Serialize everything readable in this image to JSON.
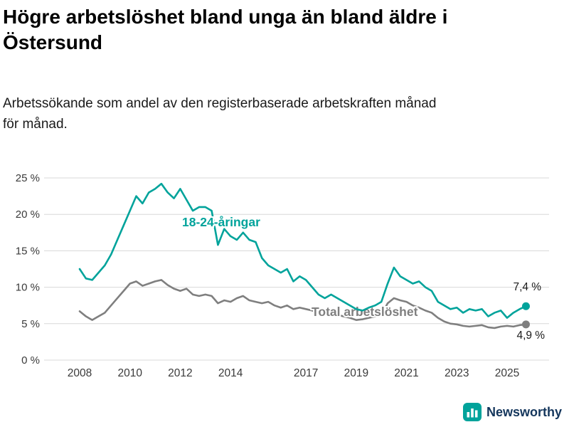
{
  "title_lines": [
    "Högre arbetslöshet bland unga än bland äldre i",
    "Östersund"
  ],
  "subtitle_lines": [
    "Arbetssökande som andel av den registerbaserade arbetskraften månad",
    "för månad."
  ],
  "footer": {
    "brand": "Newsworthy",
    "brand_color": "#14365c",
    "icon_color": "#00a39b",
    "icon_name": "bar-chart-logo-icon"
  },
  "chart_data": {
    "type": "line",
    "title": "Högre arbetslöshet bland unga än bland äldre i Östersund",
    "subtitle": "Arbetssökande som andel av den registerbaserade arbetskraften månad för månad.",
    "xlabel": "",
    "ylabel": "",
    "ylim": [
      0,
      25
    ],
    "xlim": [
      2007.4,
      2026.6
    ],
    "grid": "horizontal",
    "legend_position": "inline-labels",
    "grid_color": "#d8d8d8",
    "axis_text_color": "#3a3a3a",
    "annotation_color": "#1a1a1a",
    "yticks": [
      {
        "value": 0,
        "label": "0 %"
      },
      {
        "value": 5,
        "label": "5 %"
      },
      {
        "value": 10,
        "label": "10 %"
      },
      {
        "value": 15,
        "label": "15 %"
      },
      {
        "value": 20,
        "label": "20 %"
      },
      {
        "value": 25,
        "label": "25 %"
      }
    ],
    "xticks": [
      {
        "value": 2008,
        "label": "2008"
      },
      {
        "value": 2010,
        "label": "2010"
      },
      {
        "value": 2012,
        "label": "2012"
      },
      {
        "value": 2014,
        "label": "2014"
      },
      {
        "value": 2017,
        "label": "2017"
      },
      {
        "value": 2019,
        "label": "2019"
      },
      {
        "value": 2021,
        "label": "2021"
      },
      {
        "value": 2023,
        "label": "2023"
      },
      {
        "value": 2025,
        "label": "2025"
      }
    ],
    "x": [
      2008.0,
      2008.25,
      2008.5,
      2008.75,
      2009.0,
      2009.25,
      2009.5,
      2009.75,
      2010.0,
      2010.25,
      2010.5,
      2010.75,
      2011.0,
      2011.25,
      2011.5,
      2011.75,
      2012.0,
      2012.25,
      2012.5,
      2012.75,
      2013.0,
      2013.25,
      2013.5,
      2013.75,
      2014.0,
      2014.25,
      2014.5,
      2014.75,
      2015.0,
      2015.25,
      2015.5,
      2015.75,
      2016.0,
      2016.25,
      2016.5,
      2016.75,
      2017.0,
      2017.25,
      2017.5,
      2017.75,
      2018.0,
      2018.25,
      2018.5,
      2018.75,
      2019.0,
      2019.25,
      2019.5,
      2019.75,
      2020.0,
      2020.25,
      2020.5,
      2020.75,
      2021.0,
      2021.25,
      2021.5,
      2021.75,
      2022.0,
      2022.25,
      2022.5,
      2022.75,
      2023.0,
      2023.25,
      2023.5,
      2023.75,
      2024.0,
      2024.25,
      2024.5,
      2024.75,
      2025.0,
      2025.25,
      2025.5,
      2025.75
    ],
    "series": [
      {
        "name": "Total arbetslöshet",
        "color": "#7f7f7f",
        "end_label": "4,9 %",
        "values": [
          6.7,
          6.0,
          5.5,
          6.0,
          6.5,
          7.5,
          8.5,
          9.5,
          10.5,
          10.8,
          10.2,
          10.5,
          10.8,
          11.0,
          10.3,
          9.8,
          9.5,
          9.8,
          9.0,
          8.8,
          9.0,
          8.8,
          7.8,
          8.2,
          8.0,
          8.5,
          8.8,
          8.2,
          8.0,
          7.8,
          8.0,
          7.5,
          7.2,
          7.5,
          7.0,
          7.2,
          7.0,
          6.8,
          6.5,
          6.3,
          6.5,
          6.2,
          6.0,
          5.8,
          5.5,
          5.6,
          5.8,
          6.0,
          6.2,
          7.8,
          8.5,
          8.2,
          8.0,
          7.5,
          7.2,
          6.8,
          6.5,
          5.8,
          5.3,
          5.0,
          4.9,
          4.7,
          4.6,
          4.7,
          4.8,
          4.5,
          4.4,
          4.6,
          4.7,
          4.6,
          4.8,
          4.9
        ]
      },
      {
        "name": "18-24-åringar",
        "color": "#00a39b",
        "end_label": "7,4 %",
        "values": [
          12.5,
          11.2,
          11.0,
          12.0,
          13.0,
          14.5,
          16.5,
          18.5,
          20.5,
          22.5,
          21.5,
          23.0,
          23.5,
          24.2,
          23.0,
          22.2,
          23.5,
          22.0,
          20.5,
          21.0,
          21.0,
          20.5,
          15.8,
          18.0,
          17.0,
          16.5,
          17.5,
          16.5,
          16.2,
          14.0,
          13.0,
          12.5,
          12.0,
          12.5,
          10.8,
          11.5,
          11.0,
          10.0,
          9.0,
          8.5,
          9.0,
          8.5,
          8.0,
          7.5,
          7.0,
          6.8,
          7.2,
          7.5,
          8.0,
          10.5,
          12.7,
          11.5,
          11.0,
          10.5,
          10.8,
          10.0,
          9.5,
          8.0,
          7.5,
          7.0,
          7.2,
          6.5,
          7.0,
          6.8,
          7.0,
          6.0,
          6.5,
          6.8,
          5.8,
          6.5,
          7.0,
          7.4
        ]
      }
    ]
  }
}
